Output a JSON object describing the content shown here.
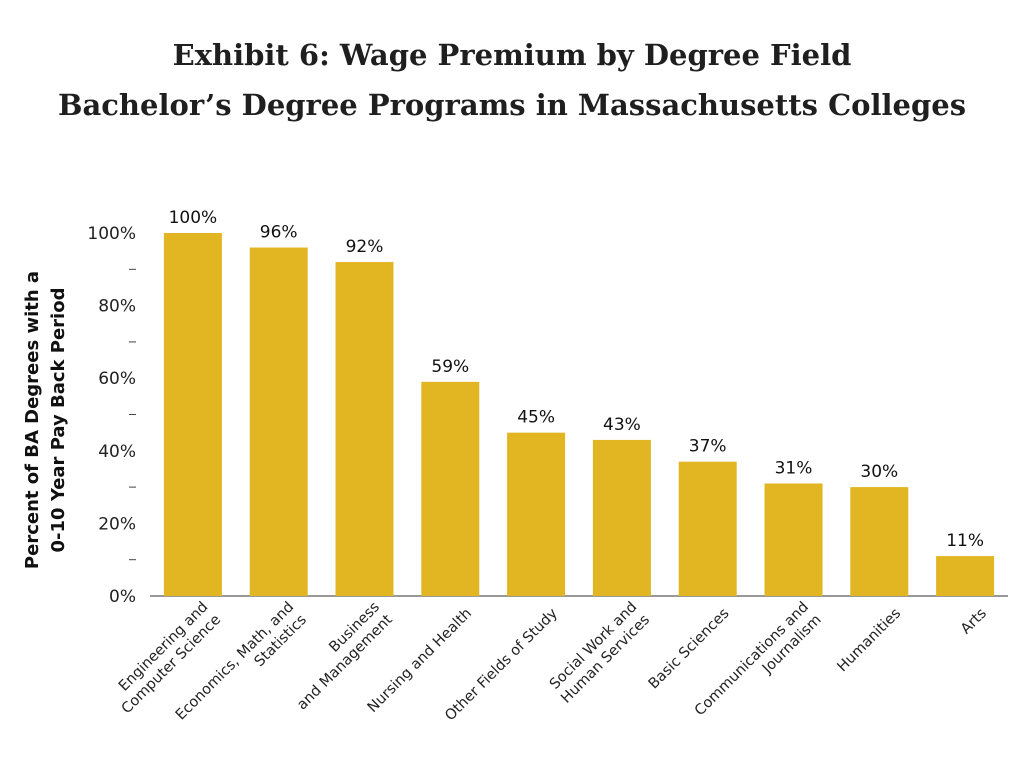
{
  "titles": {
    "line1": "Exhibit 6: Wage Premium by Degree Field",
    "line2": "Bachelor’s Degree Programs in Massachusetts Colleges"
  },
  "chart_data": {
    "type": "bar",
    "title": "Exhibit 6: Wage Premium by Degree Field",
    "subtitle": "Bachelor’s Degree Programs in Massachusetts Colleges",
    "ylabel": [
      "Percent of BA Degrees with a",
      "0-10 Year Pay Back Period"
    ],
    "xlabel": "",
    "ylim": [
      0,
      100
    ],
    "yticks": [
      0,
      20,
      40,
      60,
      80,
      100
    ],
    "ytick_labels": [
      "0%",
      "20%",
      "40%",
      "60%",
      "80%",
      "100%"
    ],
    "categories": [
      [
        "Engineering and",
        "Computer Science"
      ],
      [
        "Economics, Math, and",
        "Statistics"
      ],
      [
        "Business",
        "and Management"
      ],
      [
        "Nursing and Health"
      ],
      [
        "Other Fields of Study"
      ],
      [
        "Social Work and",
        "Human Services"
      ],
      [
        "Basic Sciences"
      ],
      [
        "Communications and",
        "Journalism"
      ],
      [
        "Humanities"
      ],
      [
        "Arts"
      ]
    ],
    "values": [
      100,
      96,
      92,
      59,
      45,
      43,
      37,
      31,
      30,
      11
    ],
    "value_labels": [
      "100%",
      "96%",
      "92%",
      "59%",
      "45%",
      "43%",
      "37%",
      "31%",
      "30%",
      "11%"
    ],
    "bar_color": "#E2B623",
    "grid": false,
    "legend": "none"
  }
}
